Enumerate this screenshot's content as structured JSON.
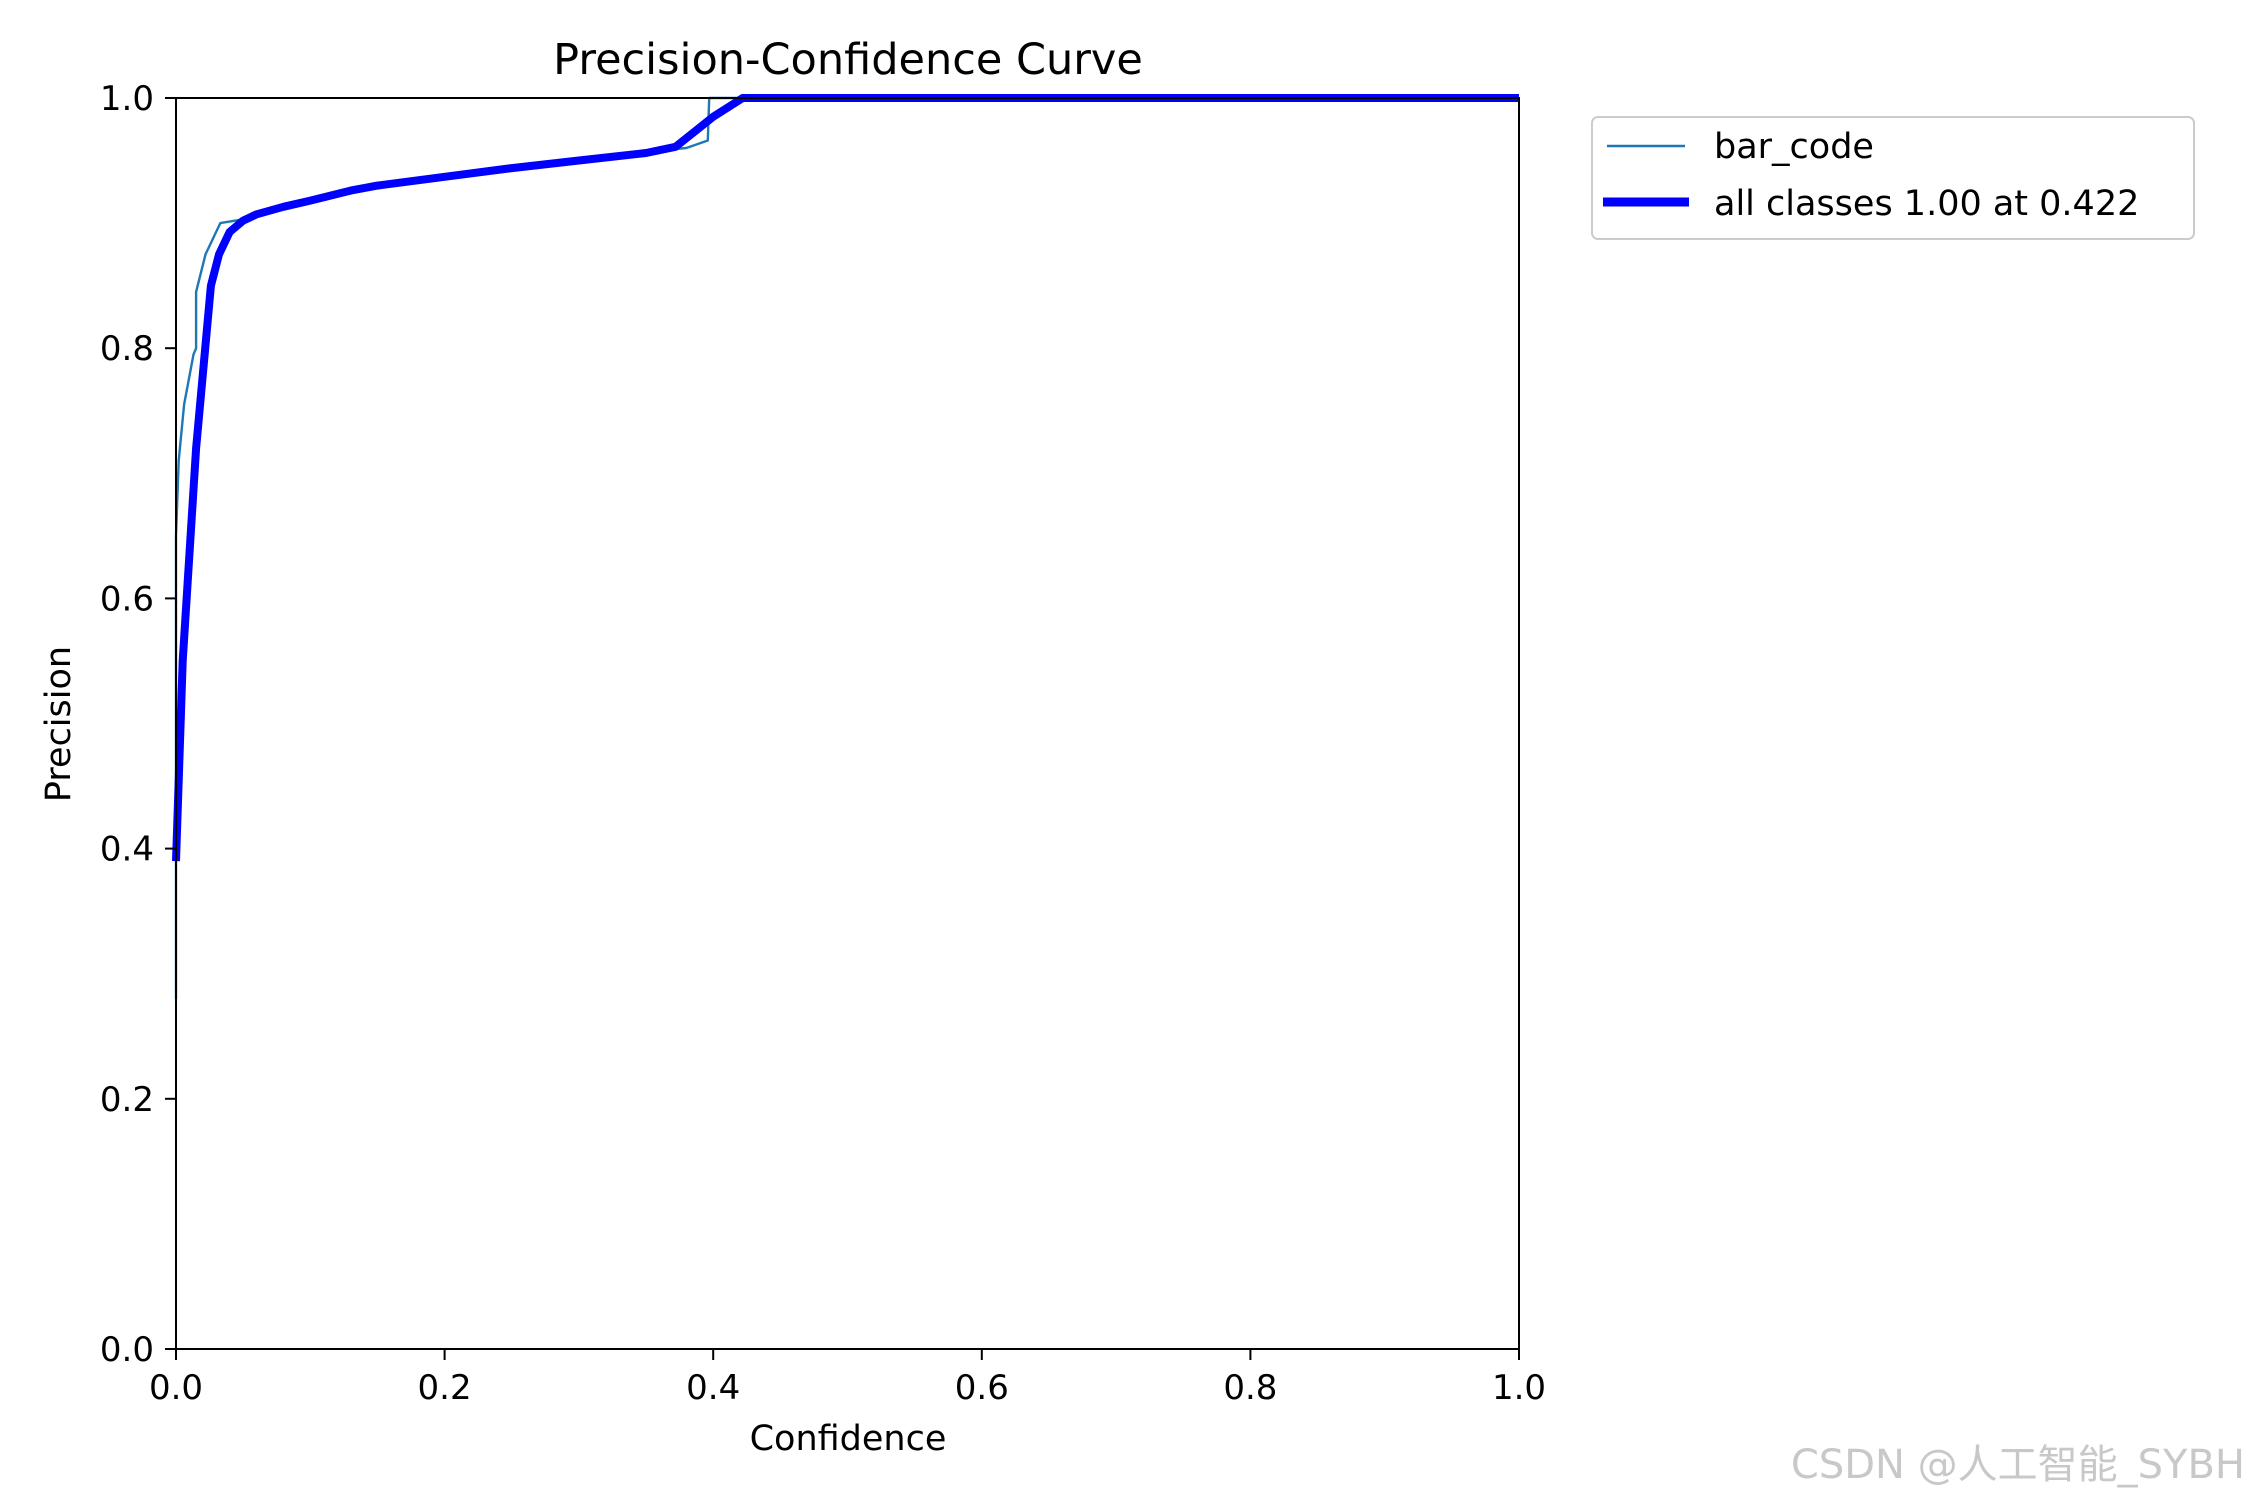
{
  "chart_data": {
    "type": "line",
    "title": "Precision-Confidence Curve",
    "xlabel": "Confidence",
    "ylabel": "Precision",
    "xlim": [
      0.0,
      1.0
    ],
    "ylim": [
      0.0,
      1.0
    ],
    "xticks": [
      "0.0",
      "0.2",
      "0.4",
      "0.6",
      "0.8",
      "1.0"
    ],
    "yticks": [
      "0.0",
      "0.2",
      "0.4",
      "0.6",
      "0.8",
      "1.0"
    ],
    "grid": false,
    "legend_position": "outside-top-right",
    "series": [
      {
        "name": "bar_code",
        "color": "#1f77b4",
        "style": "thin",
        "x": [
          0.0,
          0.0,
          0.002,
          0.006,
          0.013,
          0.015,
          0.015,
          0.022,
          0.033,
          0.05,
          0.06,
          0.08,
          0.1,
          0.15,
          0.2,
          0.3,
          0.36,
          0.38,
          0.396,
          0.397,
          0.4,
          0.42,
          0.5,
          0.6,
          0.7,
          0.8,
          0.9,
          1.0
        ],
        "y": [
          0.28,
          0.65,
          0.71,
          0.755,
          0.795,
          0.8,
          0.845,
          0.875,
          0.9,
          0.903,
          0.905,
          0.912,
          0.918,
          0.93,
          0.937,
          0.95,
          0.958,
          0.96,
          0.966,
          1.0,
          1.0,
          1.0,
          1.0,
          1.0,
          1.0,
          1.0,
          1.0,
          1.0
        ]
      },
      {
        "name": "all classes 1.00 at 0.422",
        "color": "#0000ff",
        "style": "thick",
        "x": [
          0.0,
          0.005,
          0.015,
          0.026,
          0.032,
          0.04,
          0.05,
          0.06,
          0.08,
          0.1,
          0.13,
          0.15,
          0.2,
          0.25,
          0.3,
          0.35,
          0.372,
          0.4,
          0.422,
          0.5,
          0.6,
          0.7,
          0.8,
          0.9,
          1.0
        ],
        "y": [
          0.39,
          0.55,
          0.72,
          0.85,
          0.875,
          0.893,
          0.902,
          0.907,
          0.913,
          0.918,
          0.926,
          0.93,
          0.937,
          0.944,
          0.95,
          0.956,
          0.961,
          0.985,
          1.0,
          1.0,
          1.0,
          1.0,
          1.0,
          1.0,
          1.0
        ]
      }
    ]
  },
  "watermark": "CSDN @人工智能_SYBH"
}
